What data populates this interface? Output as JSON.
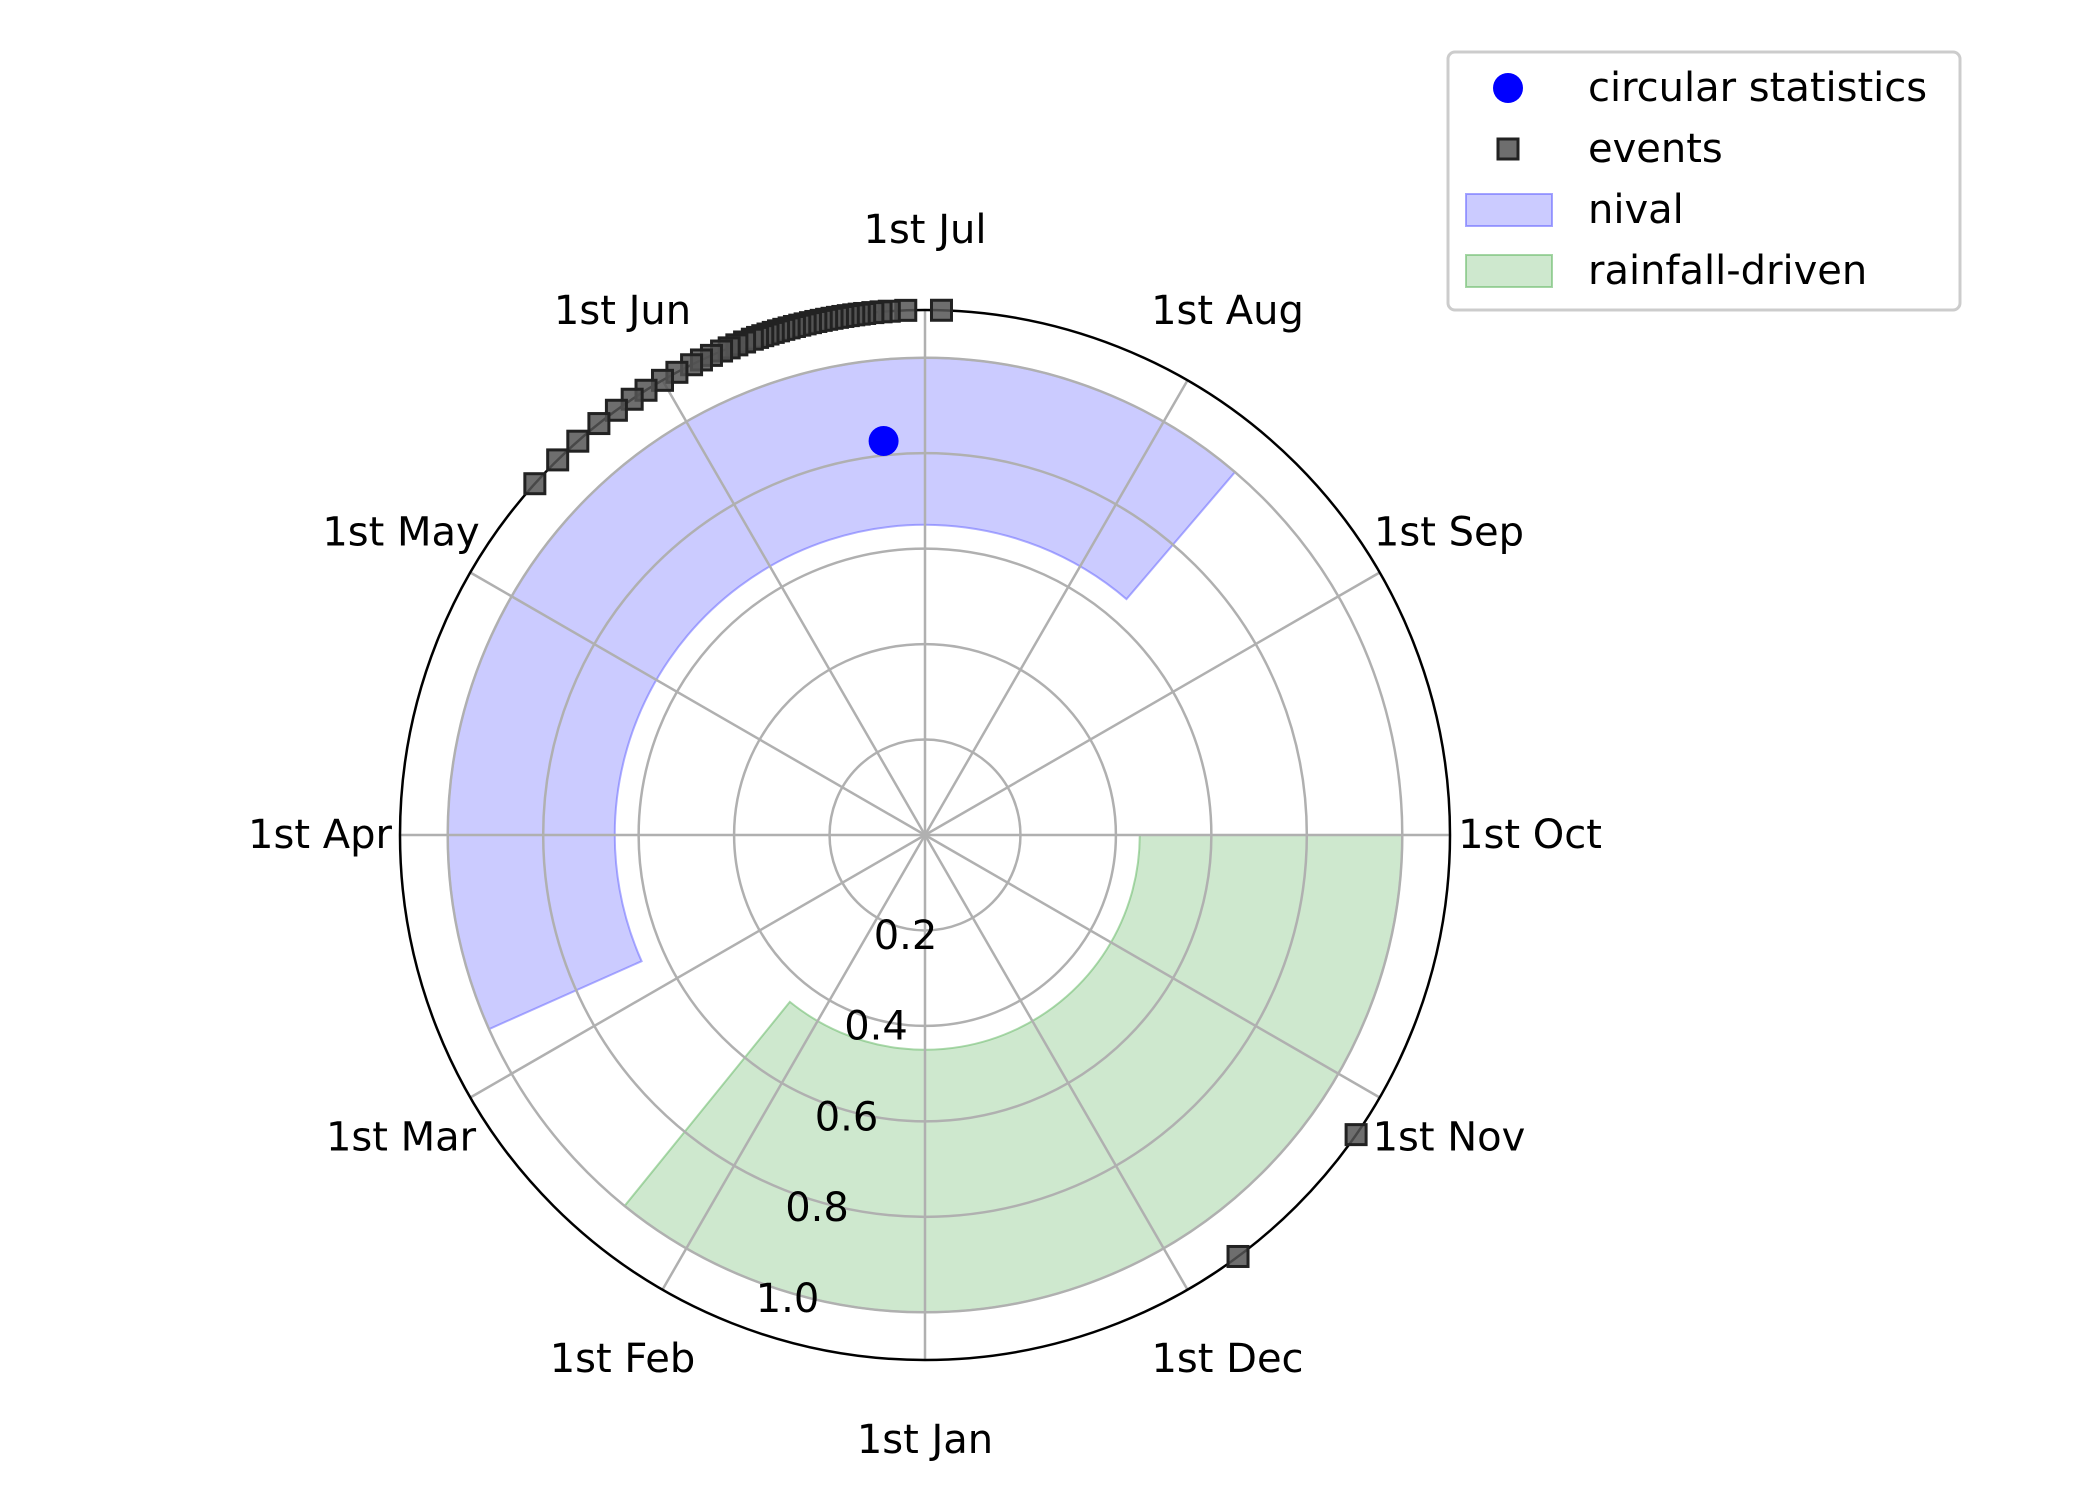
{
  "chart_data": {
    "type": "polar",
    "title": "",
    "angular_axis": {
      "direction": "clockwise",
      "zero": "bottom",
      "ticks": [
        "1st Jan",
        "1st Feb",
        "1st Mar",
        "1st Apr",
        "1st May",
        "1st Jun",
        "1st Jul",
        "1st Aug",
        "1st Sep",
        "1st Oct",
        "1st Nov",
        "1st Dec"
      ]
    },
    "radial_axis": {
      "rlim": [
        0,
        1.1
      ],
      "ticks": [
        0.2,
        0.4,
        0.6,
        0.8,
        1.0
      ],
      "tick_labels": [
        "0.2",
        "0.4",
        "0.6",
        "0.8",
        "1.0"
      ]
    },
    "grid": true,
    "legend": {
      "placement": "top-right",
      "entries": [
        "circular statistics",
        "events",
        "nival",
        "rainfall-driven"
      ]
    },
    "series": [
      {
        "name": "circular statistics",
        "kind": "point",
        "color": "#0000ff",
        "points": [
          {
            "month": 5.8,
            "r": 0.83
          }
        ]
      },
      {
        "name": "events",
        "kind": "square-markers",
        "color": "#555555",
        "points": [
          {
            "month": 6.06,
            "r": 1.1
          },
          {
            "month": 5.93,
            "r": 1.1
          },
          {
            "month": 5.87,
            "r": 1.1
          },
          {
            "month": 5.84,
            "r": 1.1
          },
          {
            "month": 5.81,
            "r": 1.1
          },
          {
            "month": 5.78,
            "r": 1.1
          },
          {
            "month": 5.76,
            "r": 1.1
          },
          {
            "month": 5.74,
            "r": 1.1
          },
          {
            "month": 5.72,
            "r": 1.1
          },
          {
            "month": 5.7,
            "r": 1.1
          },
          {
            "month": 5.68,
            "r": 1.1
          },
          {
            "month": 5.66,
            "r": 1.1
          },
          {
            "month": 5.64,
            "r": 1.1
          },
          {
            "month": 5.62,
            "r": 1.1
          },
          {
            "month": 5.6,
            "r": 1.1
          },
          {
            "month": 5.58,
            "r": 1.1
          },
          {
            "month": 5.56,
            "r": 1.1
          },
          {
            "month": 5.54,
            "r": 1.1
          },
          {
            "month": 5.52,
            "r": 1.1
          },
          {
            "month": 5.5,
            "r": 1.1
          },
          {
            "month": 5.48,
            "r": 1.1
          },
          {
            "month": 5.46,
            "r": 1.1
          },
          {
            "month": 5.44,
            "r": 1.1
          },
          {
            "month": 5.42,
            "r": 1.1
          },
          {
            "month": 5.4,
            "r": 1.1
          },
          {
            "month": 5.38,
            "r": 1.1
          },
          {
            "month": 5.36,
            "r": 1.1
          },
          {
            "month": 5.33,
            "r": 1.1
          },
          {
            "month": 5.3,
            "r": 1.1
          },
          {
            "month": 5.27,
            "r": 1.1
          },
          {
            "month": 5.24,
            "r": 1.1
          },
          {
            "month": 5.2,
            "r": 1.1
          },
          {
            "month": 5.16,
            "r": 1.1
          },
          {
            "month": 5.12,
            "r": 1.1
          },
          {
            "month": 5.06,
            "r": 1.1
          },
          {
            "month": 5.0,
            "r": 1.1
          },
          {
            "month": 4.93,
            "r": 1.1
          },
          {
            "month": 4.87,
            "r": 1.1
          },
          {
            "month": 4.8,
            "r": 1.1
          },
          {
            "month": 4.72,
            "r": 1.1
          },
          {
            "month": 4.62,
            "r": 1.1
          },
          {
            "month": 4.52,
            "r": 1.1
          },
          {
            "month": 4.4,
            "r": 1.1
          },
          {
            "month": 10.78,
            "r": 1.1
          },
          {
            "month": 10.16,
            "r": 1.1
          }
        ]
      },
      {
        "name": "nival",
        "kind": "band",
        "color": "#6b6bff",
        "fill_opacity": 0.35,
        "from_month": 2.2,
        "to_month": 7.35,
        "r_inner": 0.65,
        "r_outer": 1.0
      },
      {
        "name": "rainfall-driven",
        "kind": "band",
        "color": "#6aba6a",
        "fill_opacity": 0.33,
        "from_month": 9.0,
        "to_month": 13.3,
        "r_inner": 0.45,
        "r_outer": 1.0
      }
    ]
  }
}
